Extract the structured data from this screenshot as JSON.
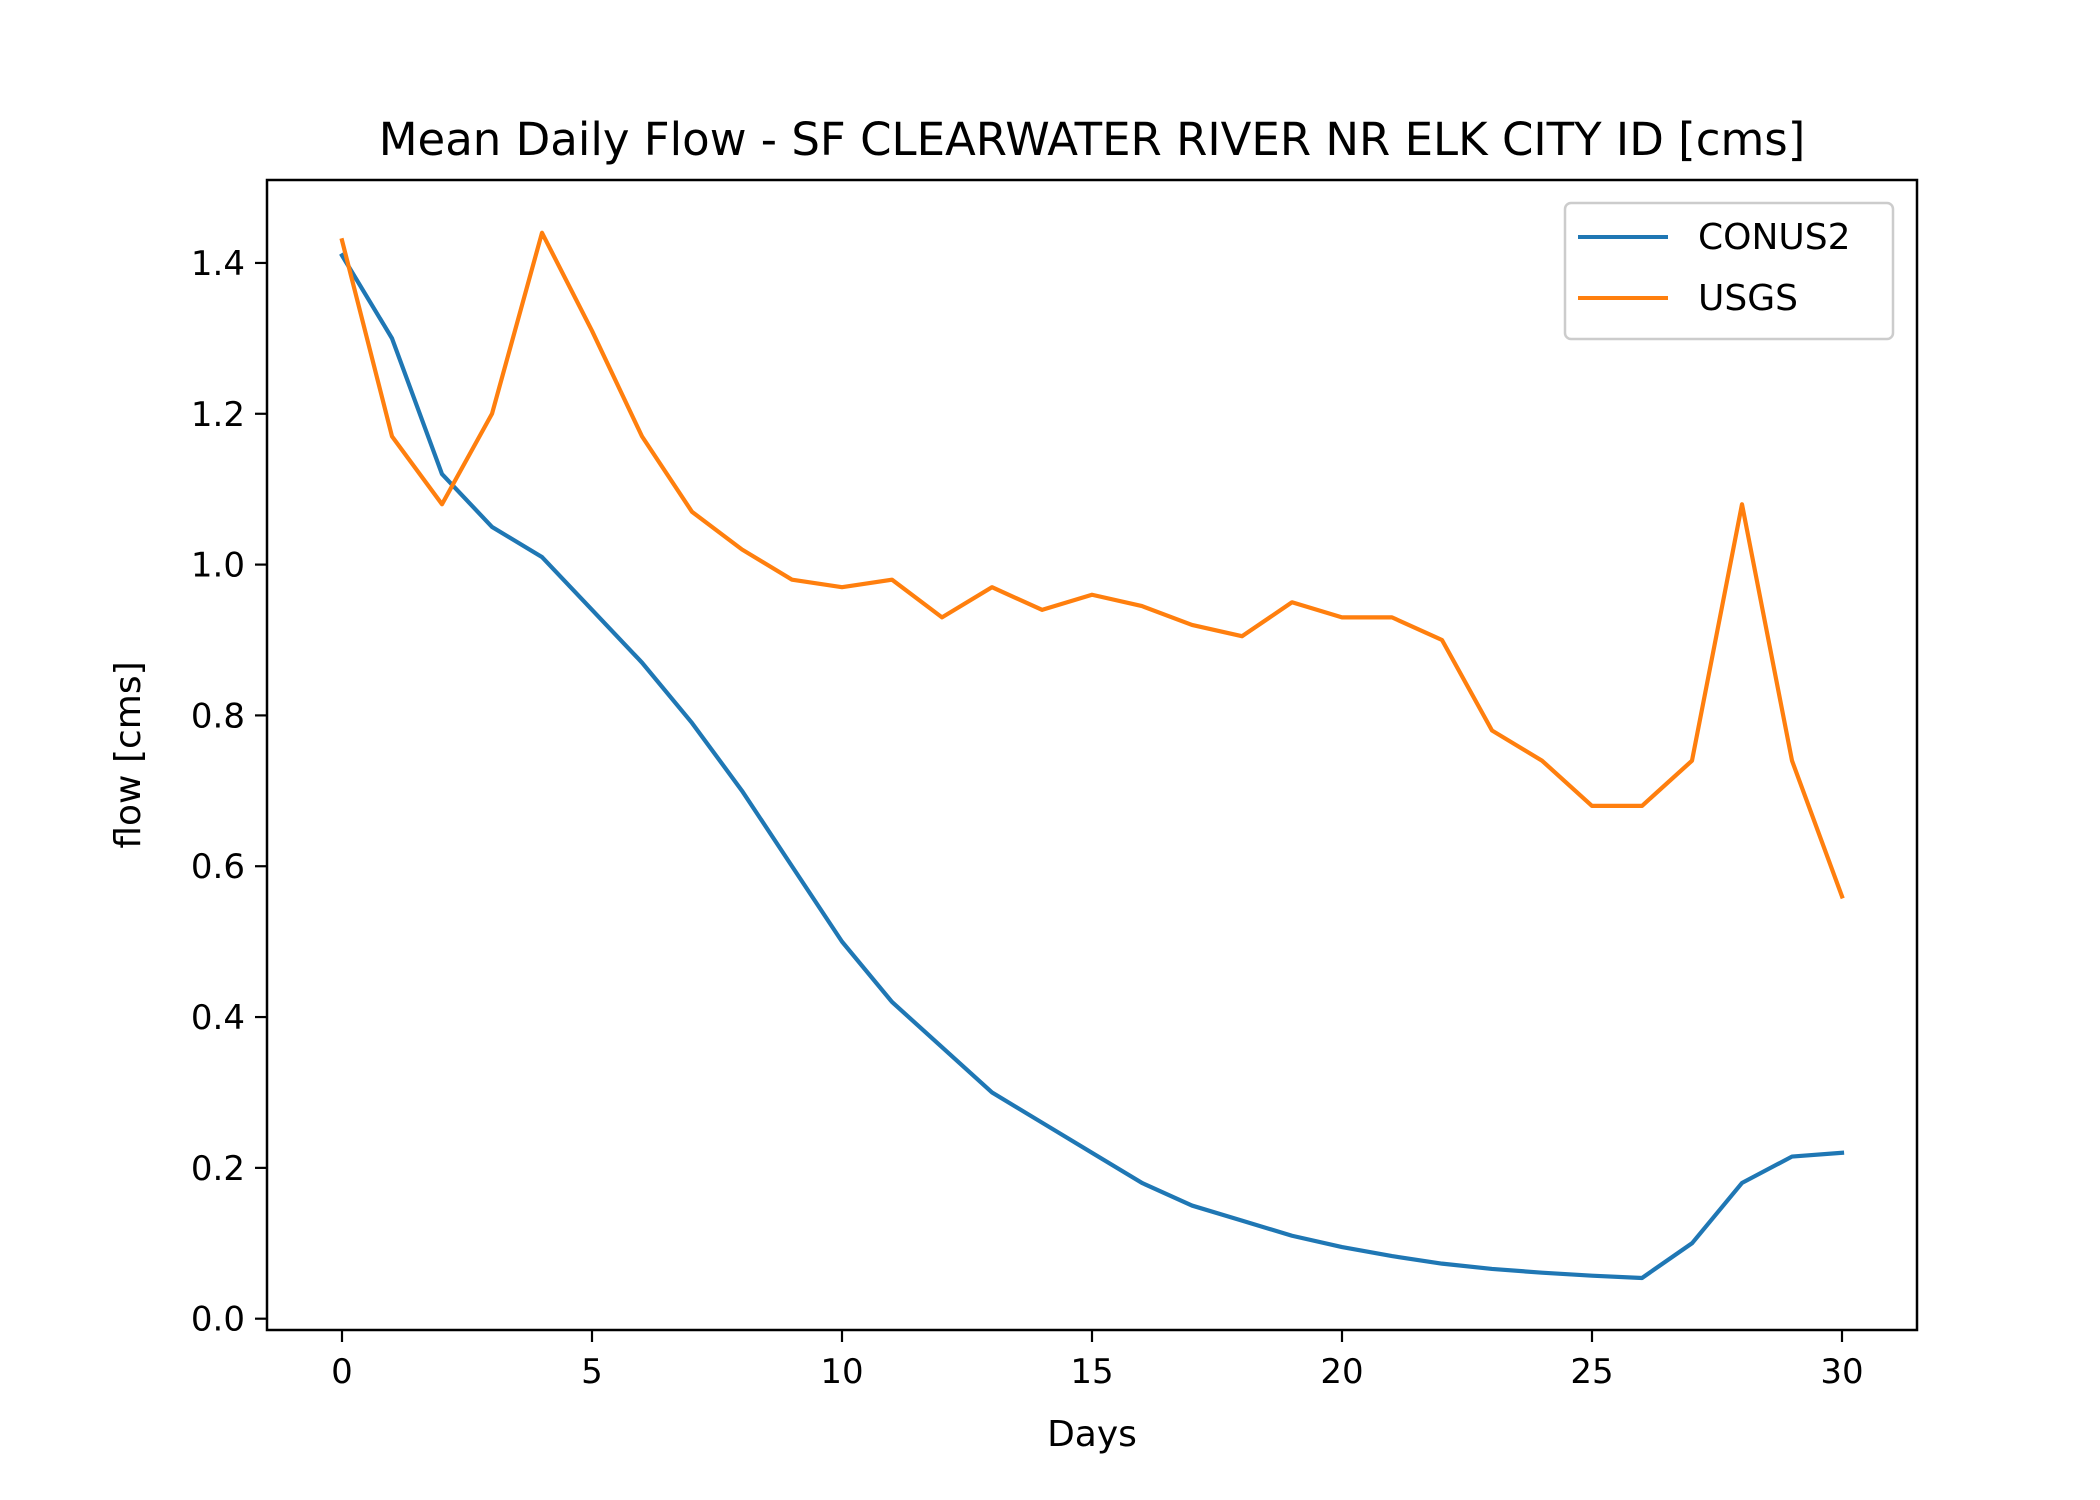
{
  "chart_data": {
    "type": "line",
    "title": "Mean Daily Flow - SF CLEARWATER RIVER NR ELK CITY ID [cms]",
    "xlabel": "Days",
    "ylabel": "flow [cms]",
    "xlim": [
      -1.5,
      31.5
    ],
    "ylim": [
      -0.015,
      1.51
    ],
    "xticks": [
      0,
      5,
      10,
      15,
      20,
      25,
      30
    ],
    "xtick_labels": [
      "0",
      "5",
      "10",
      "15",
      "20",
      "25",
      "30"
    ],
    "yticks": [
      0.0,
      0.2,
      0.4,
      0.6,
      0.8,
      1.0,
      1.2,
      1.4
    ],
    "ytick_labels": [
      "0.0",
      "0.2",
      "0.4",
      "0.6",
      "0.8",
      "1.0",
      "1.2",
      "1.4"
    ],
    "grid": false,
    "legend_position": "top-right",
    "x": [
      0,
      1,
      2,
      3,
      4,
      5,
      6,
      7,
      8,
      9,
      10,
      11,
      12,
      13,
      14,
      15,
      16,
      17,
      18,
      19,
      20,
      21,
      22,
      23,
      24,
      25,
      26,
      27,
      28,
      29,
      30
    ],
    "series": [
      {
        "name": "CONUS2",
        "color": "#1f77b4",
        "values": [
          1.41,
          1.3,
          1.12,
          1.05,
          1.01,
          0.94,
          0.87,
          0.79,
          0.7,
          0.6,
          0.5,
          0.42,
          0.36,
          0.3,
          0.26,
          0.22,
          0.18,
          0.15,
          0.13,
          0.11,
          0.095,
          0.083,
          0.073,
          0.066,
          0.061,
          0.057,
          0.054,
          0.1,
          0.18,
          0.215,
          0.22
        ]
      },
      {
        "name": "USGS",
        "color": "#ff7f0e",
        "values": [
          1.43,
          1.17,
          1.08,
          1.2,
          1.44,
          1.31,
          1.17,
          1.07,
          1.02,
          0.98,
          0.97,
          0.98,
          0.93,
          0.97,
          0.94,
          0.96,
          0.945,
          0.92,
          0.905,
          0.95,
          0.93,
          0.93,
          0.9,
          0.78,
          0.74,
          0.68,
          0.68,
          0.74,
          1.08,
          0.74,
          0.56
        ]
      }
    ]
  }
}
